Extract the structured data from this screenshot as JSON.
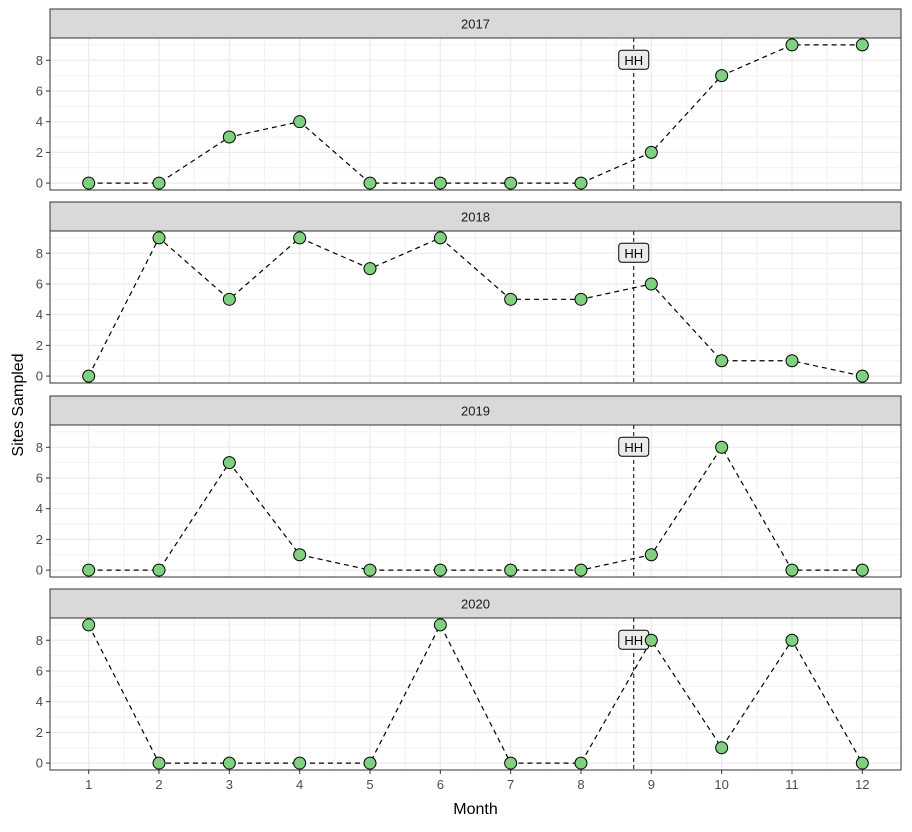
{
  "chart_data": {
    "type": "line",
    "xlabel": "Month",
    "ylabel": "Sites Sampled",
    "x": [
      1,
      2,
      3,
      4,
      5,
      6,
      7,
      8,
      9,
      10,
      11,
      12
    ],
    "x_ticks": [
      "1",
      "2",
      "3",
      "4",
      "5",
      "6",
      "7",
      "8",
      "9",
      "10",
      "11",
      "12"
    ],
    "xlim": [
      0.45,
      12.55
    ],
    "y_ticks": [
      "0",
      "2",
      "4",
      "6",
      "8"
    ],
    "ylim": [
      -0.45,
      9.45
    ],
    "vline_x": 8.75,
    "annotation": {
      "label": "HH",
      "x": 8.75,
      "y": 8
    },
    "marker_color": "#7fd07f",
    "line_style": "dashed",
    "grid": true,
    "panels": [
      {
        "title": "2017",
        "values": [
          0,
          0,
          3,
          4,
          0,
          0,
          0,
          0,
          2,
          7,
          9,
          9
        ]
      },
      {
        "title": "2018",
        "values": [
          0,
          9,
          5,
          9,
          7,
          9,
          5,
          5,
          6,
          1,
          1,
          0
        ]
      },
      {
        "title": "2019",
        "values": [
          0,
          0,
          7,
          1,
          0,
          0,
          0,
          0,
          1,
          8,
          0,
          0
        ]
      },
      {
        "title": "2020",
        "values": [
          9,
          0,
          0,
          0,
          0,
          9,
          0,
          0,
          8,
          1,
          8,
          0
        ]
      }
    ]
  }
}
